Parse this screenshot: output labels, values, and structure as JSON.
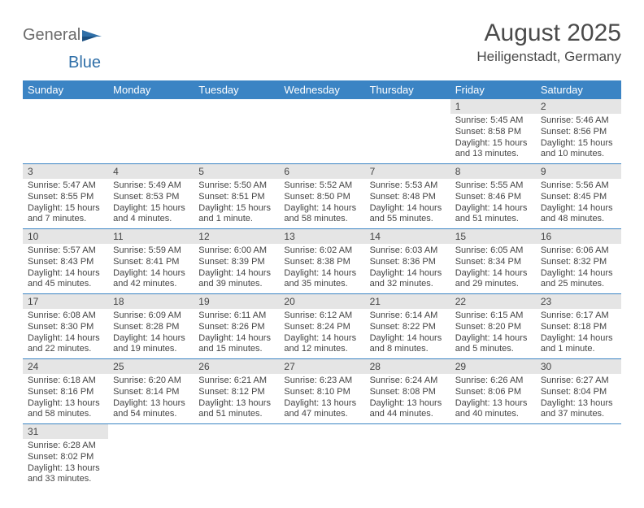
{
  "logo": {
    "text1": "General",
    "text2": "Blue"
  },
  "title": "August 2025",
  "location": "Heiligenstadt, Germany",
  "colors": {
    "header_bg": "#3b84c4",
    "header_text": "#ffffff",
    "daynum_bg": "#e5e5e5",
    "border": "#3b84c4",
    "text": "#444444",
    "logo_gray": "#6b6b6b",
    "logo_blue": "#2f6fa8"
  },
  "weekdays": [
    "Sunday",
    "Monday",
    "Tuesday",
    "Wednesday",
    "Thursday",
    "Friday",
    "Saturday"
  ],
  "weeks": [
    [
      null,
      null,
      null,
      null,
      null,
      {
        "n": "1",
        "sr": "Sunrise: 5:45 AM",
        "ss": "Sunset: 8:58 PM",
        "d1": "Daylight: 15 hours",
        "d2": "and 13 minutes."
      },
      {
        "n": "2",
        "sr": "Sunrise: 5:46 AM",
        "ss": "Sunset: 8:56 PM",
        "d1": "Daylight: 15 hours",
        "d2": "and 10 minutes."
      }
    ],
    [
      {
        "n": "3",
        "sr": "Sunrise: 5:47 AM",
        "ss": "Sunset: 8:55 PM",
        "d1": "Daylight: 15 hours",
        "d2": "and 7 minutes."
      },
      {
        "n": "4",
        "sr": "Sunrise: 5:49 AM",
        "ss": "Sunset: 8:53 PM",
        "d1": "Daylight: 15 hours",
        "d2": "and 4 minutes."
      },
      {
        "n": "5",
        "sr": "Sunrise: 5:50 AM",
        "ss": "Sunset: 8:51 PM",
        "d1": "Daylight: 15 hours",
        "d2": "and 1 minute."
      },
      {
        "n": "6",
        "sr": "Sunrise: 5:52 AM",
        "ss": "Sunset: 8:50 PM",
        "d1": "Daylight: 14 hours",
        "d2": "and 58 minutes."
      },
      {
        "n": "7",
        "sr": "Sunrise: 5:53 AM",
        "ss": "Sunset: 8:48 PM",
        "d1": "Daylight: 14 hours",
        "d2": "and 55 minutes."
      },
      {
        "n": "8",
        "sr": "Sunrise: 5:55 AM",
        "ss": "Sunset: 8:46 PM",
        "d1": "Daylight: 14 hours",
        "d2": "and 51 minutes."
      },
      {
        "n": "9",
        "sr": "Sunrise: 5:56 AM",
        "ss": "Sunset: 8:45 PM",
        "d1": "Daylight: 14 hours",
        "d2": "and 48 minutes."
      }
    ],
    [
      {
        "n": "10",
        "sr": "Sunrise: 5:57 AM",
        "ss": "Sunset: 8:43 PM",
        "d1": "Daylight: 14 hours",
        "d2": "and 45 minutes."
      },
      {
        "n": "11",
        "sr": "Sunrise: 5:59 AM",
        "ss": "Sunset: 8:41 PM",
        "d1": "Daylight: 14 hours",
        "d2": "and 42 minutes."
      },
      {
        "n": "12",
        "sr": "Sunrise: 6:00 AM",
        "ss": "Sunset: 8:39 PM",
        "d1": "Daylight: 14 hours",
        "d2": "and 39 minutes."
      },
      {
        "n": "13",
        "sr": "Sunrise: 6:02 AM",
        "ss": "Sunset: 8:38 PM",
        "d1": "Daylight: 14 hours",
        "d2": "and 35 minutes."
      },
      {
        "n": "14",
        "sr": "Sunrise: 6:03 AM",
        "ss": "Sunset: 8:36 PM",
        "d1": "Daylight: 14 hours",
        "d2": "and 32 minutes."
      },
      {
        "n": "15",
        "sr": "Sunrise: 6:05 AM",
        "ss": "Sunset: 8:34 PM",
        "d1": "Daylight: 14 hours",
        "d2": "and 29 minutes."
      },
      {
        "n": "16",
        "sr": "Sunrise: 6:06 AM",
        "ss": "Sunset: 8:32 PM",
        "d1": "Daylight: 14 hours",
        "d2": "and 25 minutes."
      }
    ],
    [
      {
        "n": "17",
        "sr": "Sunrise: 6:08 AM",
        "ss": "Sunset: 8:30 PM",
        "d1": "Daylight: 14 hours",
        "d2": "and 22 minutes."
      },
      {
        "n": "18",
        "sr": "Sunrise: 6:09 AM",
        "ss": "Sunset: 8:28 PM",
        "d1": "Daylight: 14 hours",
        "d2": "and 19 minutes."
      },
      {
        "n": "19",
        "sr": "Sunrise: 6:11 AM",
        "ss": "Sunset: 8:26 PM",
        "d1": "Daylight: 14 hours",
        "d2": "and 15 minutes."
      },
      {
        "n": "20",
        "sr": "Sunrise: 6:12 AM",
        "ss": "Sunset: 8:24 PM",
        "d1": "Daylight: 14 hours",
        "d2": "and 12 minutes."
      },
      {
        "n": "21",
        "sr": "Sunrise: 6:14 AM",
        "ss": "Sunset: 8:22 PM",
        "d1": "Daylight: 14 hours",
        "d2": "and 8 minutes."
      },
      {
        "n": "22",
        "sr": "Sunrise: 6:15 AM",
        "ss": "Sunset: 8:20 PM",
        "d1": "Daylight: 14 hours",
        "d2": "and 5 minutes."
      },
      {
        "n": "23",
        "sr": "Sunrise: 6:17 AM",
        "ss": "Sunset: 8:18 PM",
        "d1": "Daylight: 14 hours",
        "d2": "and 1 minute."
      }
    ],
    [
      {
        "n": "24",
        "sr": "Sunrise: 6:18 AM",
        "ss": "Sunset: 8:16 PM",
        "d1": "Daylight: 13 hours",
        "d2": "and 58 minutes."
      },
      {
        "n": "25",
        "sr": "Sunrise: 6:20 AM",
        "ss": "Sunset: 8:14 PM",
        "d1": "Daylight: 13 hours",
        "d2": "and 54 minutes."
      },
      {
        "n": "26",
        "sr": "Sunrise: 6:21 AM",
        "ss": "Sunset: 8:12 PM",
        "d1": "Daylight: 13 hours",
        "d2": "and 51 minutes."
      },
      {
        "n": "27",
        "sr": "Sunrise: 6:23 AM",
        "ss": "Sunset: 8:10 PM",
        "d1": "Daylight: 13 hours",
        "d2": "and 47 minutes."
      },
      {
        "n": "28",
        "sr": "Sunrise: 6:24 AM",
        "ss": "Sunset: 8:08 PM",
        "d1": "Daylight: 13 hours",
        "d2": "and 44 minutes."
      },
      {
        "n": "29",
        "sr": "Sunrise: 6:26 AM",
        "ss": "Sunset: 8:06 PM",
        "d1": "Daylight: 13 hours",
        "d2": "and 40 minutes."
      },
      {
        "n": "30",
        "sr": "Sunrise: 6:27 AM",
        "ss": "Sunset: 8:04 PM",
        "d1": "Daylight: 13 hours",
        "d2": "and 37 minutes."
      }
    ],
    [
      {
        "n": "31",
        "sr": "Sunrise: 6:28 AM",
        "ss": "Sunset: 8:02 PM",
        "d1": "Daylight: 13 hours",
        "d2": "and 33 minutes."
      },
      null,
      null,
      null,
      null,
      null,
      null
    ]
  ]
}
